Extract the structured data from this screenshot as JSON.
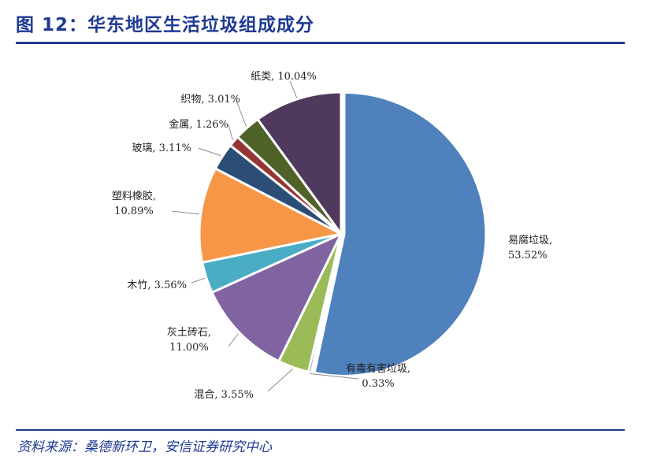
{
  "figure": {
    "title": "图 12：华东地区生活垃圾组成成分",
    "source": "资料来源：桑德新环卫，安信证券研究中心"
  },
  "chart_data": {
    "type": "pie",
    "title": "图 12：华东地区生活垃圾组成成分",
    "slices": [
      {
        "label": "易腐垃圾",
        "value": 53.52,
        "display": "53.52%",
        "color": "#4f81bd"
      },
      {
        "label": "有毒有害垃圾",
        "value": 0.33,
        "display": "0.33%",
        "color": "#2c4d75"
      },
      {
        "label": "混合",
        "value": 3.55,
        "display": "3.55%",
        "color": "#9bbb59"
      },
      {
        "label": "灰土砖石",
        "value": 11.0,
        "display": "11.00%",
        "color": "#8064a2"
      },
      {
        "label": "木竹",
        "value": 3.56,
        "display": "3.56%",
        "color": "#4bacc6"
      },
      {
        "label": "塑料橡胶",
        "value": 10.89,
        "display": "10.89%",
        "color": "#f79646"
      },
      {
        "label": "玻璃",
        "value": 3.11,
        "display": "3.11%",
        "color": "#2c4d75"
      },
      {
        "label": "金属",
        "value": 1.26,
        "display": "1.26%",
        "color": "#963634"
      },
      {
        "label": "织物",
        "value": 3.01,
        "display": "3.01%",
        "color": "#4f6228"
      },
      {
        "label": "纸类",
        "value": 10.04,
        "display": "10.04%",
        "color": "#4f3a5e"
      }
    ]
  }
}
